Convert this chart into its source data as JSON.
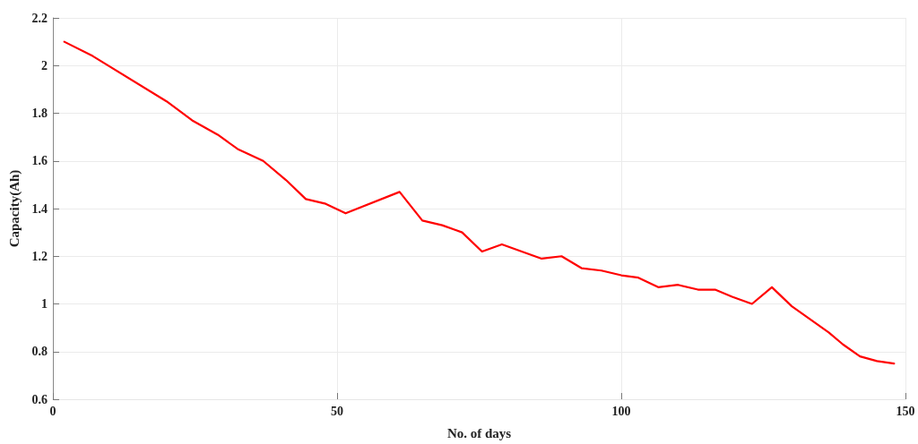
{
  "chart_data": {
    "type": "line",
    "xlabel": "No. of days",
    "ylabel": "Capacity(Ah)",
    "x": [
      2,
      7,
      20,
      24.5,
      29,
      32.5,
      37,
      41,
      44.5,
      48,
      51.5,
      61,
      65,
      68.5,
      72,
      75.5,
      79,
      86,
      89.5,
      93,
      96.5,
      100,
      103,
      106.5,
      110,
      113.5,
      116.5,
      119.5,
      123,
      126.5,
      130,
      136.5,
      139,
      142,
      145,
      148
    ],
    "series": [
      {
        "color": "#ff0000",
        "values": [
          2.1,
          2.04,
          1.85,
          1.77,
          1.71,
          1.65,
          1.6,
          1.52,
          1.44,
          1.42,
          1.38,
          1.47,
          1.35,
          1.33,
          1.3,
          1.22,
          1.25,
          1.19,
          1.2,
          1.15,
          1.14,
          1.12,
          1.11,
          1.07,
          1.08,
          1.06,
          1.06,
          1.03,
          1.0,
          1.07,
          0.99,
          0.88,
          0.83,
          0.78,
          0.76,
          0.75
        ]
      }
    ],
    "xlim": [
      0,
      150
    ],
    "xticks": [
      0,
      50,
      100,
      150
    ],
    "ylim": [
      0.6,
      2.2
    ],
    "yticks": [
      0.6,
      0.8,
      1,
      1.2,
      1.4,
      1.6,
      1.8,
      2,
      2.2
    ],
    "grid": true,
    "marker": "none",
    "line_style": "solid"
  }
}
